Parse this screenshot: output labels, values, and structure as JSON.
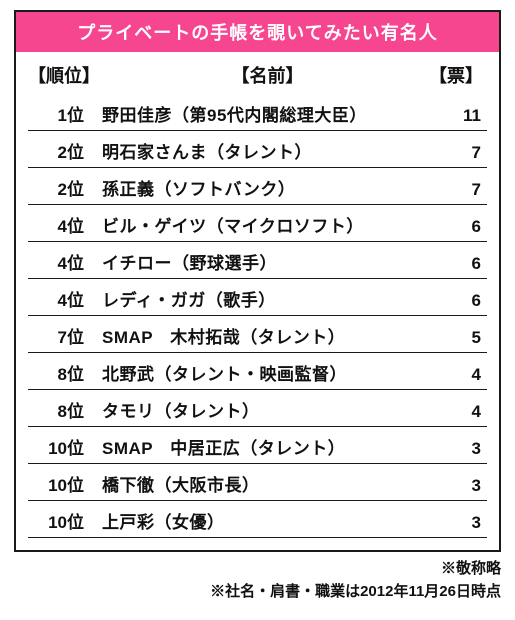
{
  "title": "プライベートの手帳を覗いてみたい有名人",
  "headers": {
    "rank": "【順位】",
    "name": "【名前】",
    "votes": "【票】"
  },
  "rows": [
    {
      "rank": "1位",
      "name": "野田佳彦（第95代内閣総理大臣）",
      "votes": "11"
    },
    {
      "rank": "2位",
      "name": "明石家さんま（タレント）",
      "votes": "7"
    },
    {
      "rank": "2位",
      "name": "孫正義（ソフトバンク）",
      "votes": "7"
    },
    {
      "rank": "4位",
      "name": "ビル・ゲイツ（マイクロソフト）",
      "votes": "6"
    },
    {
      "rank": "4位",
      "name": "イチロー（野球選手）",
      "votes": "6"
    },
    {
      "rank": "4位",
      "name": "レディ・ガガ（歌手）",
      "votes": "6"
    },
    {
      "rank": "7位",
      "name": "SMAP　木村拓哉（タレント）",
      "votes": "5"
    },
    {
      "rank": "8位",
      "name": "北野武（タレント・映画監督）",
      "votes": "4"
    },
    {
      "rank": "8位",
      "name": "タモリ（タレント）",
      "votes": "4"
    },
    {
      "rank": "10位",
      "name": "SMAP　中居正広（タレント）",
      "votes": "3"
    },
    {
      "rank": "10位",
      "name": "橋下徹（大阪市長）",
      "votes": "3"
    },
    {
      "rank": "10位",
      "name": "上戸彩（女優）",
      "votes": "3"
    }
  ],
  "footnotes": {
    "line1": "※敬称略",
    "line2": "※社名・肩書・職業は2012年11月26日時点"
  },
  "colors": {
    "title_bg": "#f74690",
    "title_fg": "#ffffff",
    "border": "#1a1a1a",
    "text": "#111111",
    "bg": "#ffffff"
  }
}
